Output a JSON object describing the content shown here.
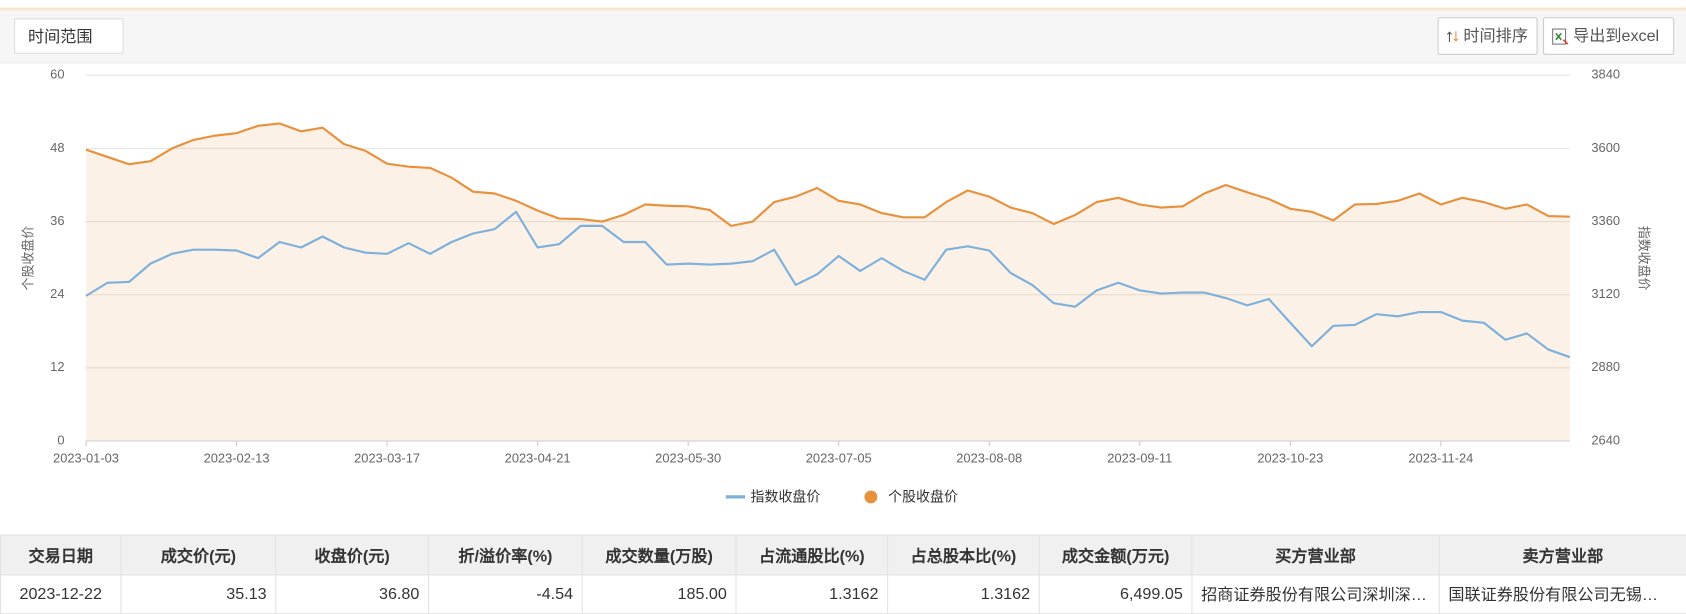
{
  "toolbar": {
    "time_range": "时间范围",
    "sort_button": "时间排序",
    "export_button": "导出到excel"
  },
  "chart_data": {
    "type": "line",
    "categories": [
      "2023-01-03",
      null,
      null,
      null,
      null,
      null,
      null,
      "2023-02-13",
      null,
      null,
      null,
      null,
      null,
      null,
      "2023-03-17",
      null,
      null,
      null,
      null,
      null,
      null,
      "2023-04-21",
      null,
      null,
      null,
      null,
      null,
      null,
      "2023-05-30",
      null,
      null,
      null,
      null,
      null,
      null,
      "2023-07-05",
      null,
      null,
      null,
      null,
      null,
      null,
      "2023-08-08",
      null,
      null,
      null,
      null,
      null,
      null,
      "2023-09-11",
      null,
      null,
      null,
      null,
      null,
      null,
      "2023-10-23",
      null,
      null,
      null,
      null,
      null,
      null,
      "2023-11-24",
      null,
      null,
      null,
      null,
      null,
      null
    ],
    "series": [
      {
        "name": "指数收盘价",
        "color": "#7eb0dc",
        "axis": "y2",
        "values": [
          3116,
          3159,
          3162,
          3222,
          3254,
          3268,
          3268,
          3265,
          3240,
          3293,
          3275,
          3311,
          3275,
          3258,
          3254,
          3289,
          3254,
          3293,
          3321,
          3335,
          3392,
          3275,
          3286,
          3346,
          3346,
          3293,
          3293,
          3219,
          3222,
          3219,
          3222,
          3230,
          3268,
          3152,
          3187,
          3247,
          3198,
          3240,
          3198,
          3169,
          3268,
          3279,
          3265,
          3191,
          3152,
          3092,
          3081,
          3134,
          3159,
          3134,
          3124,
          3127,
          3127,
          3109,
          3085,
          3106,
          3028,
          2951,
          3018,
          3021,
          3056,
          3049,
          3063,
          3063,
          3035,
          3028,
          2972,
          2993,
          2940,
          2915
        ]
      },
      {
        "name": "个股收盘价",
        "color": "#e8913d",
        "area": true,
        "values": [
          47.8,
          46.6,
          45.4,
          45.9,
          48.0,
          49.4,
          50.1,
          50.5,
          51.7,
          52.1,
          50.8,
          51.4,
          48.7,
          47.6,
          45.5,
          45.0,
          44.8,
          43.2,
          40.9,
          40.6,
          39.4,
          37.8,
          36.5,
          36.4,
          36.0,
          37.1,
          38.8,
          38.6,
          38.5,
          37.9,
          35.3,
          36.0,
          39.2,
          40.1,
          41.5,
          39.4,
          38.8,
          37.4,
          36.7,
          36.7,
          39.2,
          41.1,
          40.1,
          38.3,
          37.4,
          35.6,
          37.1,
          39.2,
          39.9,
          38.8,
          38.3,
          38.5,
          40.6,
          42.0,
          40.8,
          39.7,
          38.1,
          37.6,
          36.2,
          38.8,
          38.9,
          39.4,
          40.6,
          38.8,
          39.9,
          39.2,
          38.1,
          38.8,
          36.9,
          36.8
        ]
      }
    ],
    "ylim": [
      0,
      60
    ],
    "yticks": [
      0,
      12,
      24,
      36,
      48,
      60
    ],
    "y2lim": [
      2640,
      3840
    ],
    "y2ticks": [
      2640,
      2880,
      3120,
      3360,
      3600,
      3840
    ],
    "y_label": "个股收盘价",
    "y2_label": "指数收盘价",
    "grid": true,
    "legend": "bottom"
  },
  "table": {
    "columns": [
      "交易日期",
      "成交价(元)",
      "收盘价(元)",
      "折/溢价率(%)",
      "成交数量(万股)",
      "占流通股比(%)",
      "占总股本比(%)",
      "成交金额(万元)",
      "买方营业部",
      "卖方营业部"
    ],
    "rows": [
      [
        "2023-12-22",
        "35.13",
        "36.80",
        "-4.54",
        "185.00",
        "1.3162",
        "1.3162",
        "6,499.05",
        "招商证券股份有限公司深圳深…",
        "国联证券股份有限公司无锡…"
      ]
    ]
  }
}
